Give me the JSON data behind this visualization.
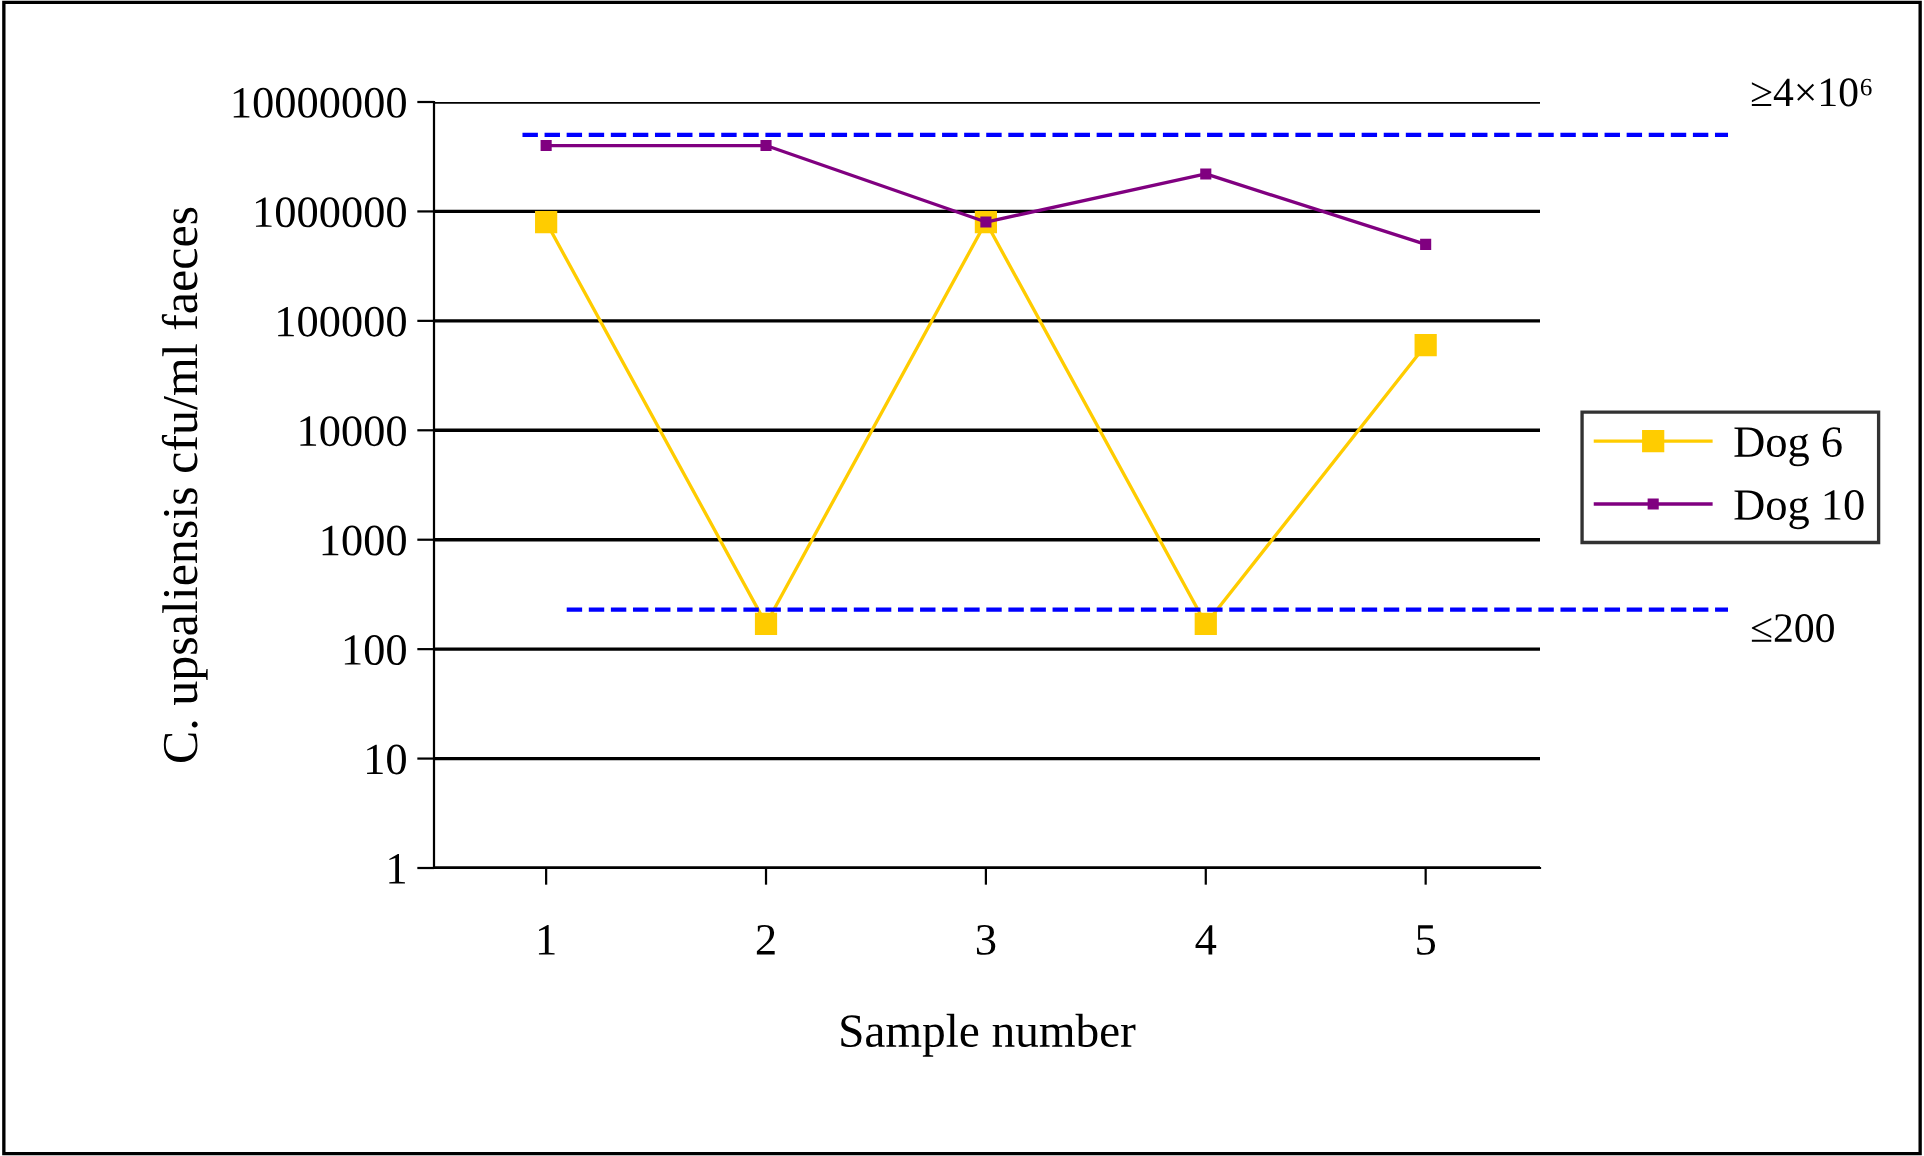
{
  "chart_data": {
    "type": "line",
    "xlabel": "Sample number",
    "ylabel": "C. upsaliensis cfu/ml faeces",
    "categories": [
      "1",
      "2",
      "3",
      "4",
      "5"
    ],
    "series": [
      {
        "name": "Dog 6",
        "color": "#ffcc00",
        "marker": "square",
        "values": [
          800000,
          170,
          800000,
          170,
          60000
        ]
      },
      {
        "name": "Dog 10",
        "color": "#800080",
        "marker": "square",
        "values": [
          4000000,
          4000000,
          800000,
          2200000,
          500000
        ]
      }
    ],
    "log": "y",
    "ylim": [
      1,
      10000000
    ],
    "yticks": [
      1,
      10,
      100,
      1000,
      10000,
      100000,
      1000000,
      10000000
    ],
    "grid": "y",
    "legend": "right",
    "line_style": "solid",
    "ref_lines": [
      {
        "axis": "y",
        "value": 5000000,
        "label": "≥4×10⁶",
        "color": "#0000ff",
        "line_style": "dashed"
      },
      {
        "axis": "y",
        "value": 230,
        "label": "≤200",
        "color": "#0000ff",
        "line_style": "dashed"
      }
    ]
  }
}
